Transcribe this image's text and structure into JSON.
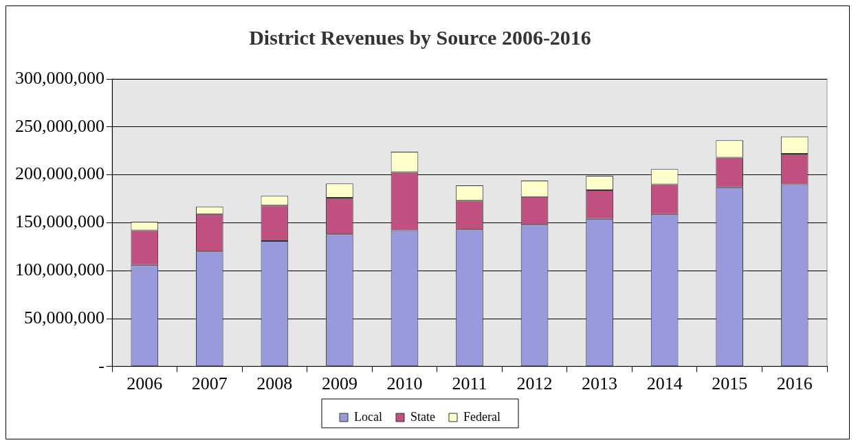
{
  "chart_data": {
    "type": "bar",
    "title": "District Revenues by Source 2006-2016",
    "stacked": true,
    "categories": [
      "2006",
      "2007",
      "2008",
      "2009",
      "2010",
      "2011",
      "2012",
      "2013",
      "2014",
      "2015",
      "2016"
    ],
    "series": [
      {
        "name": "Local",
        "color": "#9999dd",
        "values": [
          106000000,
          120000000,
          131000000,
          138000000,
          142000000,
          143000000,
          148000000,
          154000000,
          159000000,
          187000000,
          190000000
        ]
      },
      {
        "name": "State",
        "color": "#c05080",
        "values": [
          36000000,
          39000000,
          37000000,
          38000000,
          61000000,
          30000000,
          29000000,
          30000000,
          31000000,
          31000000,
          32000000
        ]
      },
      {
        "name": "Federal",
        "color": "#ffffcc",
        "values": [
          9000000,
          8000000,
          10000000,
          15000000,
          21000000,
          16000000,
          17000000,
          15000000,
          16000000,
          18000000,
          18000000
        ]
      }
    ],
    "ylim": [
      0,
      300000000
    ],
    "yticks": [
      {
        "value": 0,
        "label": "-"
      },
      {
        "value": 50000000,
        "label": "50,000,000"
      },
      {
        "value": 100000000,
        "label": "100,000,000"
      },
      {
        "value": 150000000,
        "label": "150,000,000"
      },
      {
        "value": 200000000,
        "label": "200,000,000"
      },
      {
        "value": 250000000,
        "label": "250,000,000"
      },
      {
        "value": 300000000,
        "label": "300,000,000"
      }
    ],
    "grid": "y",
    "legend": "bottom"
  }
}
